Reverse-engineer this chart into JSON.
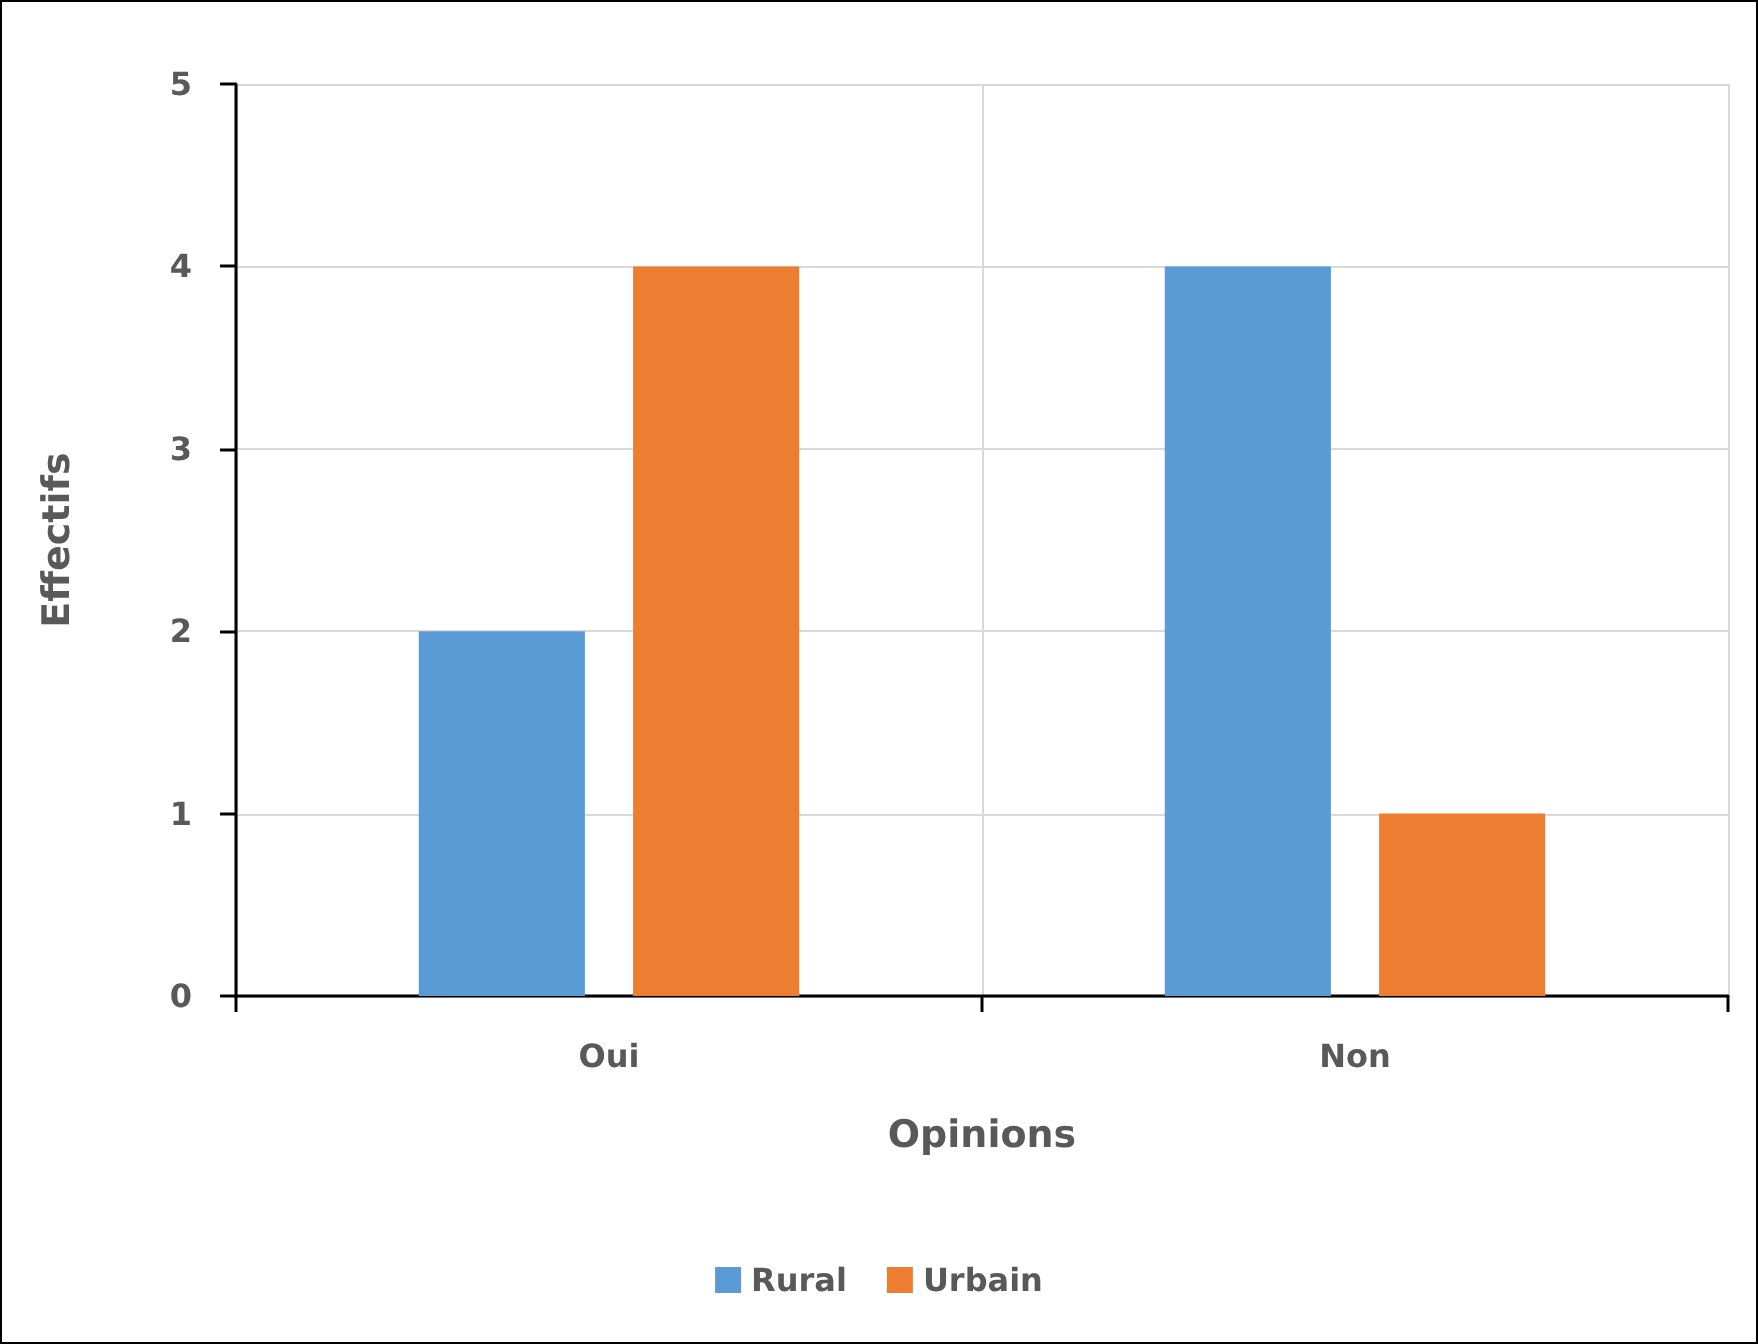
{
  "chart_data": {
    "type": "bar",
    "xlabel": "Opinions",
    "ylabel": "Effectifs",
    "categories": [
      "Oui",
      "Non"
    ],
    "series": [
      {
        "name": "Rural",
        "color": "#5b9bd5",
        "values": [
          2,
          4
        ]
      },
      {
        "name": "Urbain",
        "color": "#ed7d31",
        "values": [
          4,
          1
        ]
      }
    ],
    "ylim": [
      0,
      5
    ],
    "yticks": [
      0,
      1,
      2,
      3,
      4,
      5
    ],
    "grid": true,
    "legend": "bottom"
  }
}
